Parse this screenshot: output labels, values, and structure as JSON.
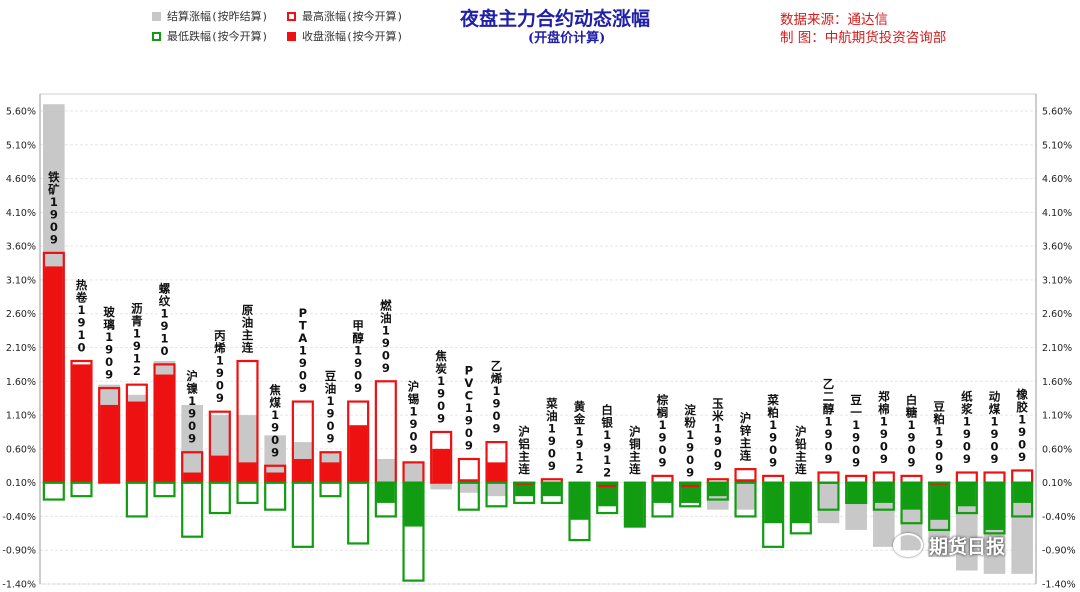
{
  "title": "夜盘主力合约动态涨幅",
  "subtitle": "(开盘价计算)",
  "source_line1": "数据来源：通达信",
  "source_line2": "制      图：中航期货投资咨询部",
  "watermark": "期货日报",
  "legend": {
    "settle": "结算涨幅(按昨结算)",
    "high": "最高涨幅(按今开算)",
    "low": "最低跌幅(按今开算)",
    "close": "收盘涨幅(按今开算)"
  },
  "colors": {
    "red": "#ee1111",
    "green": "#129c12",
    "gray": "#c8c8c8",
    "title": "#1f1fa8",
    "source": "#d41a1a"
  },
  "chart_data": {
    "type": "bar",
    "ylim": [
      -1.4,
      5.6
    ],
    "yticks": [
      "5.60%",
      "5.10%",
      "4.60%",
      "4.10%",
      "3.60%",
      "3.10%",
      "2.60%",
      "2.10%",
      "1.60%",
      "1.10%",
      "0.60%",
      "0.10%",
      "-0.40%",
      "-0.90%",
      "-1.40%"
    ],
    "ytick_values": [
      5.6,
      5.1,
      4.6,
      4.1,
      3.6,
      3.1,
      2.6,
      2.1,
      1.6,
      1.1,
      0.6,
      0.1,
      -0.4,
      -0.9,
      -1.4
    ],
    "categories": [
      "铁矿1909",
      "热卷1910",
      "玻璃1909",
      "沥青1912",
      "螺纹1910",
      "沪镍1909",
      "丙烯1909",
      "原油主连",
      "焦煤1909",
      "PTA1909",
      "豆油1909",
      "甲醇1909",
      "燃油1909",
      "沪锡1909",
      "焦炭1909",
      "PVC1909",
      "乙烯1909",
      "沪铝主连",
      "菜油1909",
      "黄金1912",
      "白银1912",
      "沪铜主连",
      "棕榈1909",
      "淀粉1909",
      "玉米1909",
      "沪锌主连",
      "菜粕1909",
      "沪铅主连",
      "乙二醇1909",
      "豆一1909",
      "郑棉1909",
      "白糖1909",
      "豆粕1909",
      "纸浆1909",
      "动煤1909",
      "橡胶1909"
    ],
    "series": [
      {
        "name": "结算涨幅(按昨结算)",
        "values": [
          5.7,
          1.8,
          1.55,
          1.4,
          1.9,
          1.25,
          1.1,
          1.1,
          0.8,
          0.7,
          0.55,
          0.35,
          0.45,
          0.4,
          0.0,
          -0.05,
          -0.1,
          -0.1,
          -0.1,
          -0.1,
          -0.1,
          -0.1,
          -0.15,
          -0.2,
          -0.3,
          -0.3,
          -0.35,
          -0.5,
          -0.5,
          -0.6,
          -0.85,
          -0.9,
          -1.0,
          -1.2,
          -1.25,
          -1.25
        ]
      },
      {
        "name": "最高涨幅(按今开算)",
        "values": [
          3.5,
          1.9,
          1.5,
          1.55,
          1.85,
          0.55,
          1.15,
          1.9,
          0.35,
          1.3,
          0.55,
          1.3,
          1.6,
          0.4,
          0.85,
          0.45,
          0.7,
          0.1,
          0.15,
          0.0,
          0.05,
          0.0,
          0.2,
          0.05,
          0.15,
          0.3,
          0.2,
          0.0,
          0.25,
          0.2,
          0.25,
          0.2,
          0.1,
          0.25,
          0.25,
          0.28
        ]
      },
      {
        "name": "最低跌幅(按今开算)",
        "values": [
          -0.15,
          -0.1,
          0.0,
          -0.4,
          -0.1,
          -0.7,
          -0.35,
          -0.2,
          -0.3,
          -0.85,
          -0.1,
          -0.8,
          -0.4,
          -1.35,
          0.0,
          -0.3,
          -0.25,
          -0.2,
          -0.2,
          -0.75,
          -0.35,
          -0.55,
          -0.4,
          -0.25,
          -0.15,
          -0.4,
          -0.85,
          -0.65,
          -0.3,
          -0.2,
          -0.3,
          -0.5,
          -0.6,
          -0.35,
          -0.65,
          -0.4
        ]
      },
      {
        "name": "收盘涨幅(按今开算)",
        "values": [
          3.3,
          1.85,
          1.25,
          1.3,
          1.7,
          0.25,
          0.5,
          0.4,
          0.25,
          0.45,
          0.4,
          0.95,
          -0.2,
          -0.55,
          0.6,
          0.15,
          0.4,
          -0.1,
          -0.1,
          -0.45,
          -0.25,
          -0.55,
          -0.2,
          -0.2,
          -0.1,
          0.15,
          -0.5,
          -0.5,
          0.1,
          -0.2,
          -0.2,
          -0.3,
          -0.45,
          -0.25,
          -0.6,
          -0.2
        ]
      }
    ]
  }
}
